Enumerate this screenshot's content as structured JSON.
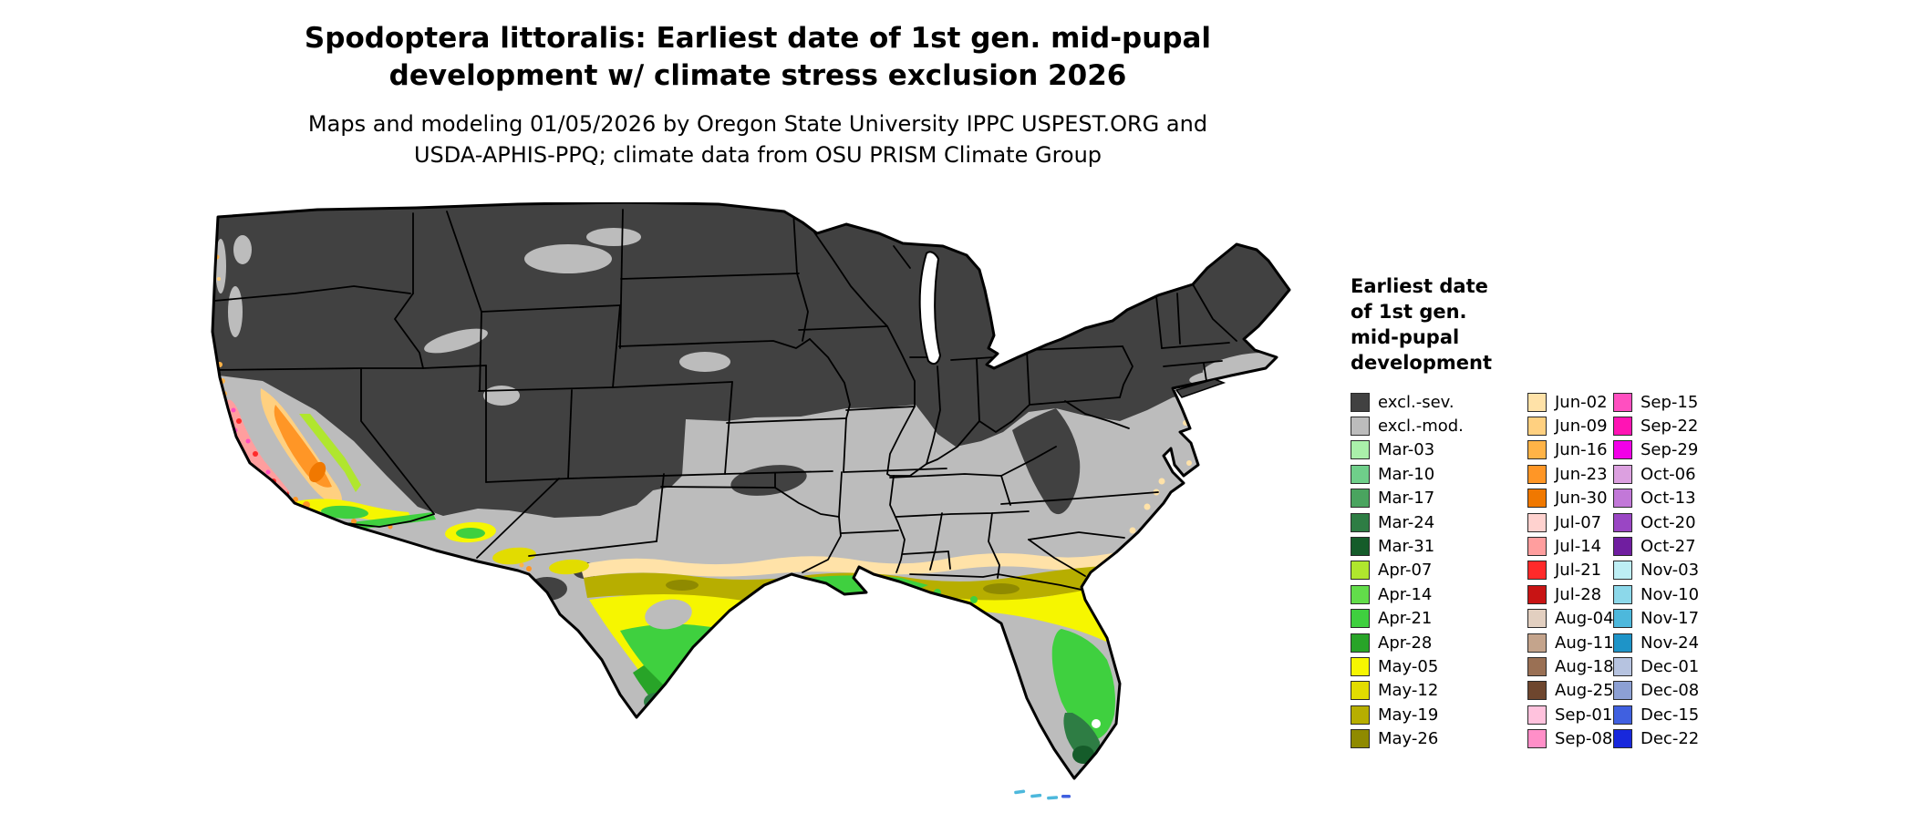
{
  "title": {
    "line1": "Spodoptera littoralis: Earliest date of 1st gen. mid-pupal",
    "line2": "development w/ climate stress exclusion 2026"
  },
  "subtitle": {
    "line1": "Maps and modeling 01/05/2026 by Oregon State University IPPC USPEST.ORG and",
    "line2": "USDA-APHIS-PPQ; climate data from OSU PRISM Climate Group"
  },
  "map": {
    "region": "Continental United States choropleth of earliest 1st generation mid-pupal development date",
    "colors": {
      "excl_sev": "#414141",
      "excl_mod": "#bcbcbc",
      "water": "#ffffff",
      "mar24": "#2e7d44",
      "mar31": "#155c2a",
      "apr07": "#b0e62e",
      "apr21": "#3fd03f",
      "apr28": "#28a428",
      "may05": "#f6f600",
      "may12": "#e2dc00",
      "may19": "#b7ae00",
      "may26": "#8f8a00",
      "jun02": "#ffe2a8",
      "jun09": "#ffd080",
      "jun16": "#ffb347",
      "jun23": "#ff9626",
      "jun30": "#f07800",
      "jul14": "#ff9e9e",
      "jul21": "#ff2a2a",
      "sep15": "#ff4fc0",
      "nov17": "#4db8dc",
      "dec15": "#4060e0"
    }
  },
  "legend": {
    "title_lines": [
      "Earliest date",
      "of 1st gen.",
      "mid-pupal",
      "development"
    ],
    "columns": [
      {
        "items": [
          {
            "label": "excl.-sev.",
            "color": "#414141"
          },
          {
            "label": "excl.-mod.",
            "color": "#bcbcbc"
          },
          {
            "label": "Mar-03",
            "color": "#aaf0aa"
          },
          {
            "label": "Mar-10",
            "color": "#6fcf8a"
          },
          {
            "label": "Mar-17",
            "color": "#4aa45f"
          },
          {
            "label": "Mar-24",
            "color": "#2e7d44"
          },
          {
            "label": "Mar-31",
            "color": "#155c2a"
          },
          {
            "label": "Apr-07",
            "color": "#b0e62e"
          },
          {
            "label": "Apr-14",
            "color": "#62dd4a"
          },
          {
            "label": "Apr-21",
            "color": "#3fd03f"
          },
          {
            "label": "Apr-28",
            "color": "#28a428"
          },
          {
            "label": "May-05",
            "color": "#f6f600"
          },
          {
            "label": "May-12",
            "color": "#e2dc00"
          },
          {
            "label": "May-19",
            "color": "#b7ae00"
          },
          {
            "label": "May-26",
            "color": "#8f8a00"
          }
        ]
      },
      {
        "items": [
          {
            "label": "Jun-02",
            "color": "#ffe2a8"
          },
          {
            "label": "Jun-09",
            "color": "#ffd080"
          },
          {
            "label": "Jun-16",
            "color": "#ffb347"
          },
          {
            "label": "Jun-23",
            "color": "#ff9626"
          },
          {
            "label": "Jun-30",
            "color": "#f07800"
          },
          {
            "label": "Jul-07",
            "color": "#ffd2cf"
          },
          {
            "label": "Jul-14",
            "color": "#ff9e9e"
          },
          {
            "label": "Jul-21",
            "color": "#ff2a2a"
          },
          {
            "label": "Jul-28",
            "color": "#c81414"
          },
          {
            "label": "Aug-04",
            "color": "#e2cfc0"
          },
          {
            "label": "Aug-11",
            "color": "#c4a48c"
          },
          {
            "label": "Aug-18",
            "color": "#9a7054"
          },
          {
            "label": "Aug-25",
            "color": "#6e462e"
          },
          {
            "label": "Sep-01",
            "color": "#ffc2dd"
          },
          {
            "label": "Sep-08",
            "color": "#ff8fc8"
          }
        ]
      },
      {
        "items": [
          {
            "label": "Sep-15",
            "color": "#ff4fc0"
          },
          {
            "label": "Sep-22",
            "color": "#ff14b4"
          },
          {
            "label": "Sep-29",
            "color": "#f200e8"
          },
          {
            "label": "Oct-06",
            "color": "#dca0e0"
          },
          {
            "label": "Oct-13",
            "color": "#c278d8"
          },
          {
            "label": "Oct-20",
            "color": "#9a46c4"
          },
          {
            "label": "Oct-27",
            "color": "#701ea0"
          },
          {
            "label": "Nov-03",
            "color": "#bdeef4"
          },
          {
            "label": "Nov-10",
            "color": "#8cd8ea"
          },
          {
            "label": "Nov-17",
            "color": "#4db8dc"
          },
          {
            "label": "Nov-24",
            "color": "#1e94c8"
          },
          {
            "label": "Dec-01",
            "color": "#b6c3e0"
          },
          {
            "label": "Dec-08",
            "color": "#8ca0d4"
          },
          {
            "label": "Dec-15",
            "color": "#4060e0"
          },
          {
            "label": "Dec-22",
            "color": "#1828dc"
          }
        ]
      }
    ]
  }
}
